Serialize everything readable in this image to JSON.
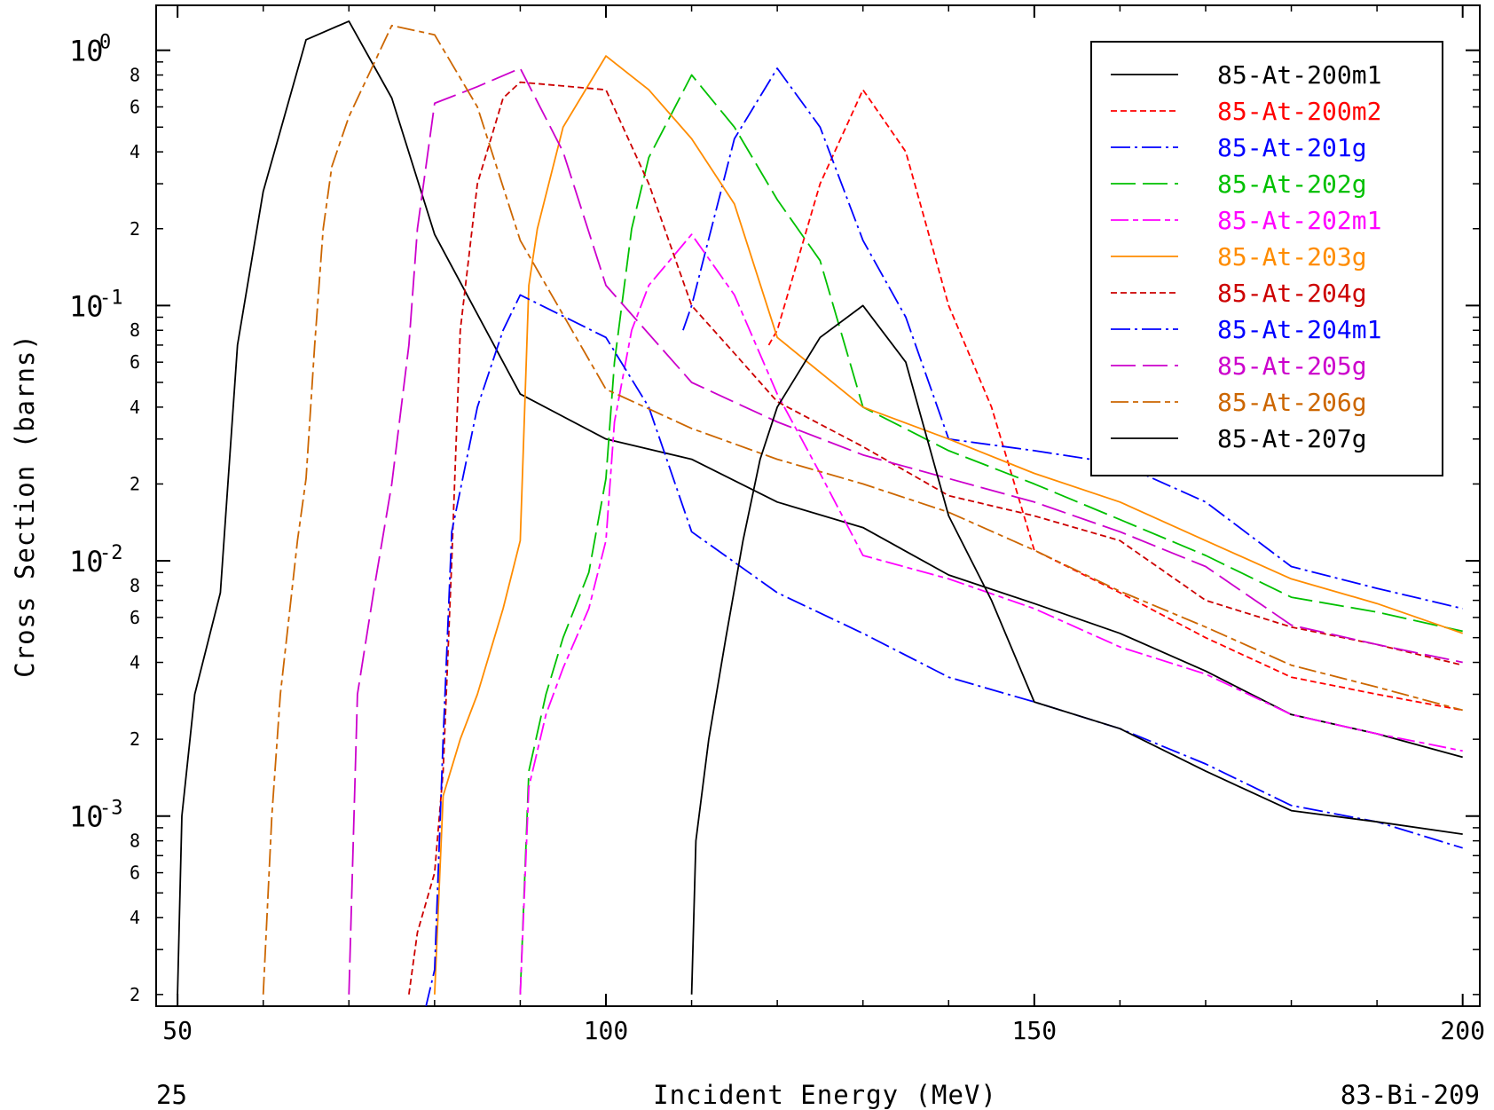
{
  "chart_data": {
    "type": "line",
    "xlabel": "Incident Energy (MeV)",
    "ylabel": "Cross Section (barns)",
    "xlim": [
      47.5,
      202
    ],
    "ylim": [
      0.00018,
      1.5
    ],
    "yscale": "log",
    "grid": false,
    "legend_position": "top-right",
    "x_ticks": [
      "50",
      "100",
      "150",
      "200"
    ],
    "y_decades": [
      {
        "value": 1,
        "base": "10",
        "exp": "0"
      },
      {
        "value": 0.1,
        "base": "10",
        "exp": "-1"
      },
      {
        "value": 0.01,
        "base": "10",
        "exp": "-2"
      },
      {
        "value": 0.001,
        "base": "10",
        "exp": "-3"
      }
    ],
    "y_minor_labels": [
      {
        "value": 0.8,
        "label": "8"
      },
      {
        "value": 0.6,
        "label": "6"
      },
      {
        "value": 0.4,
        "label": "4"
      },
      {
        "value": 0.2,
        "label": "2"
      },
      {
        "value": 0.08,
        "label": "8"
      },
      {
        "value": 0.06,
        "label": "6"
      },
      {
        "value": 0.04,
        "label": "4"
      },
      {
        "value": 0.02,
        "label": "2"
      },
      {
        "value": 0.008,
        "label": "8"
      },
      {
        "value": 0.006,
        "label": "6"
      },
      {
        "value": 0.004,
        "label": "4"
      },
      {
        "value": 0.002,
        "label": "2"
      },
      {
        "value": 0.0008,
        "label": "8"
      },
      {
        "value": 0.0006,
        "label": "6"
      },
      {
        "value": 0.0004,
        "label": "4"
      },
      {
        "value": 0.0002,
        "label": "2"
      }
    ],
    "series": [
      {
        "name": "85-At-200m1",
        "color": "#000000",
        "dash": "",
        "x": [
          50,
          50.5,
          52,
          55,
          57,
          60,
          65,
          70,
          75,
          80,
          90,
          100,
          110,
          120,
          130,
          140,
          150,
          160,
          170,
          180,
          190,
          200
        ],
        "y": [
          0.0002,
          0.001,
          0.003,
          0.0075,
          0.07,
          0.28,
          1.1,
          1.3,
          0.65,
          0.19,
          0.045,
          0.03,
          0.025,
          0.017,
          0.0135,
          0.0088,
          0.0068,
          0.0052,
          0.0037,
          0.0025,
          0.0021,
          0.0017
        ]
      },
      {
        "name": "85-At-200m2",
        "color": "#ff0000",
        "dash": "7,4",
        "x": [
          119,
          120,
          125,
          130,
          135,
          140,
          145,
          150,
          160,
          170,
          180,
          190,
          200
        ],
        "y": [
          0.07,
          0.08,
          0.3,
          0.7,
          0.4,
          0.1,
          0.04,
          0.011,
          0.0075,
          0.005,
          0.0035,
          0.003,
          0.0026
        ]
      },
      {
        "name": "85-At-201g",
        "color": "#0000ff",
        "dash": "22,5,3,5",
        "x": [
          109,
          110,
          115,
          120,
          125,
          130,
          135,
          140,
          150,
          160,
          170,
          180,
          190,
          200
        ],
        "y": [
          0.08,
          0.1,
          0.45,
          0.85,
          0.5,
          0.18,
          0.09,
          0.03,
          0.027,
          0.024,
          0.017,
          0.0095,
          0.0078,
          0.0065
        ]
      },
      {
        "name": "85-At-202g",
        "color": "#00c000",
        "dash": "28,8",
        "x": [
          90,
          91,
          93,
          95,
          98,
          100,
          101,
          103,
          105,
          110,
          115,
          120,
          125,
          130,
          140,
          150,
          160,
          170,
          180,
          190,
          200
        ],
        "y": [
          0.0002,
          0.0015,
          0.003,
          0.005,
          0.009,
          0.021,
          0.06,
          0.2,
          0.38,
          0.8,
          0.5,
          0.26,
          0.15,
          0.04,
          0.027,
          0.02,
          0.0145,
          0.0105,
          0.0072,
          0.0063,
          0.0053
        ]
      },
      {
        "name": "85-At-202m1",
        "color": "#ff00ff",
        "dash": "20,5,6,5",
        "x": [
          90,
          91,
          93,
          95,
          98,
          100,
          101,
          103,
          105,
          110,
          115,
          120,
          125,
          130,
          140,
          150,
          160,
          170,
          180,
          190,
          200
        ],
        "y": [
          0.0002,
          0.0013,
          0.0025,
          0.0038,
          0.0065,
          0.012,
          0.035,
          0.08,
          0.12,
          0.19,
          0.11,
          0.045,
          0.022,
          0.0105,
          0.0085,
          0.0065,
          0.0046,
          0.0036,
          0.0025,
          0.0021,
          0.0018
        ]
      },
      {
        "name": "85-At-203g",
        "color": "#ff8c00",
        "dash": "",
        "x": [
          80,
          81,
          83,
          85,
          88,
          90,
          91,
          92,
          95,
          100,
          105,
          110,
          115,
          120,
          130,
          140,
          150,
          160,
          170,
          180,
          190,
          200
        ],
        "y": [
          0.0002,
          0.0012,
          0.002,
          0.003,
          0.0065,
          0.012,
          0.12,
          0.2,
          0.5,
          0.95,
          0.7,
          0.45,
          0.25,
          0.075,
          0.04,
          0.03,
          0.022,
          0.017,
          0.012,
          0.0085,
          0.0068,
          0.0052
        ]
      },
      {
        "name": "85-At-204g",
        "color": "#cc0000",
        "dash": "7,4",
        "x": [
          77,
          78,
          80,
          81,
          82,
          83,
          85,
          88,
          90,
          100,
          105,
          110,
          115,
          120,
          130,
          140,
          150,
          160,
          170,
          180,
          190,
          200
        ],
        "y": [
          0.0002,
          0.00035,
          0.0006,
          0.0015,
          0.01,
          0.08,
          0.3,
          0.65,
          0.75,
          0.7,
          0.3,
          0.1,
          0.065,
          0.042,
          0.028,
          0.018,
          0.015,
          0.012,
          0.007,
          0.0055,
          0.0047,
          0.0039
        ]
      },
      {
        "name": "85-At-204m1",
        "color": "#0000ff",
        "dash": "22,5,3,5",
        "x": [
          79,
          80,
          81,
          82,
          85,
          88,
          90,
          100,
          105,
          110,
          120,
          130,
          140,
          150,
          160,
          170,
          180,
          190,
          200
        ],
        "y": [
          0.00018,
          0.00025,
          0.002,
          0.013,
          0.04,
          0.08,
          0.11,
          0.075,
          0.04,
          0.013,
          0.0075,
          0.0052,
          0.0035,
          0.0028,
          0.0022,
          0.0016,
          0.0011,
          0.00095,
          0.00075
        ]
      },
      {
        "name": "85-At-205g",
        "color": "#cc00cc",
        "dash": "28,8",
        "x": [
          70,
          71,
          73,
          75,
          77,
          78,
          80,
          85,
          90,
          95,
          100,
          110,
          120,
          130,
          140,
          150,
          160,
          170,
          180,
          190,
          200
        ],
        "y": [
          0.0002,
          0.003,
          0.008,
          0.02,
          0.07,
          0.2,
          0.62,
          0.72,
          0.85,
          0.4,
          0.12,
          0.05,
          0.035,
          0.026,
          0.021,
          0.017,
          0.013,
          0.0095,
          0.0056,
          0.0047,
          0.004
        ]
      },
      {
        "name": "85-At-206g",
        "color": "#cc6600",
        "dash": "20,5,6,5",
        "x": [
          60,
          61,
          62,
          63,
          64,
          65,
          66,
          67,
          68,
          70,
          73,
          75,
          80,
          85,
          90,
          100,
          110,
          120,
          130,
          140,
          150,
          160,
          170,
          180,
          190,
          200
        ],
        "y": [
          0.0002,
          0.001,
          0.003,
          0.006,
          0.012,
          0.021,
          0.07,
          0.2,
          0.35,
          0.55,
          0.9,
          1.25,
          1.15,
          0.6,
          0.18,
          0.047,
          0.033,
          0.025,
          0.02,
          0.0155,
          0.011,
          0.0076,
          0.0055,
          0.0039,
          0.0032,
          0.0026
        ]
      },
      {
        "name": "85-At-207g",
        "color": "#000000",
        "dash": "",
        "x": [
          110,
          110.5,
          112,
          114,
          116,
          118,
          120,
          125,
          130,
          135,
          140,
          145,
          150,
          160,
          170,
          180,
          190,
          200
        ],
        "y": [
          0.0002,
          0.0008,
          0.002,
          0.005,
          0.012,
          0.025,
          0.04,
          0.075,
          0.1,
          0.06,
          0.015,
          0.007,
          0.0028,
          0.0022,
          0.0015,
          0.00105,
          0.00095,
          0.00085
        ]
      }
    ]
  },
  "footer": {
    "left": "25",
    "right": "83-Bi-209"
  }
}
